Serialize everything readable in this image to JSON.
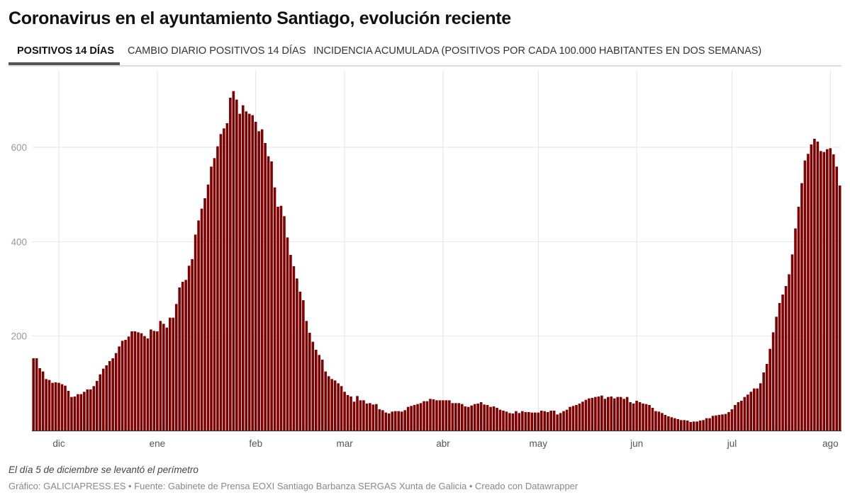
{
  "header": {
    "title": "Coronavirus en el ayuntamiento Santiago, evolución reciente",
    "tabs": [
      {
        "label": "POSITIVOS 14 DÍAS",
        "active": true
      },
      {
        "label": "CAMBIO DIARIO POSITIVOS 14 DÍAS",
        "active": false
      },
      {
        "label": "INCIDENCIA ACUMULADA (POSITIVOS POR CADA 100.000 HABITANTES EN DOS SEMANAS)",
        "active": false
      }
    ]
  },
  "footer": {
    "note": "El día 5 de diciembre se levantó el perímetro",
    "source": "Gráfico: GALICIAPRESS.ES • Fuente: Gabinete de Prensa EOXI Santiago Barbanza SERGAS Xunta de Galicia • Creado con Datawrapper"
  },
  "chart_data": {
    "type": "bar",
    "title": "",
    "xlabel": "",
    "ylabel": "",
    "bar_color": "#7f0000",
    "grid": true,
    "ylim": [
      0,
      720
    ],
    "yticks": [
      200,
      400,
      600
    ],
    "xticks": [
      {
        "date": "2020-12-01",
        "label": "dic"
      },
      {
        "date": "2021-01-01",
        "label": "ene"
      },
      {
        "date": "2021-02-01",
        "label": "feb"
      },
      {
        "date": "2021-03-01",
        "label": "mar"
      },
      {
        "date": "2021-04-01",
        "label": "abr"
      },
      {
        "date": "2021-05-01",
        "label": "may"
      },
      {
        "date": "2021-06-01",
        "label": "jun"
      },
      {
        "date": "2021-07-01",
        "label": "jul"
      },
      {
        "date": "2021-08-01",
        "label": "ago"
      }
    ],
    "x": [
      "2020-11-23",
      "2020-11-24",
      "2020-11-25",
      "2020-11-26",
      "2020-11-27",
      "2020-11-28",
      "2020-11-29",
      "2020-11-30",
      "2020-12-01",
      "2020-12-02",
      "2020-12-03",
      "2020-12-04",
      "2020-12-05",
      "2020-12-06",
      "2020-12-07",
      "2020-12-08",
      "2020-12-09",
      "2020-12-10",
      "2020-12-11",
      "2020-12-12",
      "2020-12-13",
      "2020-12-14",
      "2020-12-15",
      "2020-12-16",
      "2020-12-17",
      "2020-12-18",
      "2020-12-19",
      "2020-12-20",
      "2020-12-21",
      "2020-12-22",
      "2020-12-23",
      "2020-12-24",
      "2020-12-25",
      "2020-12-26",
      "2020-12-27",
      "2020-12-28",
      "2020-12-29",
      "2020-12-30",
      "2020-12-31",
      "2021-01-01",
      "2021-01-02",
      "2021-01-03",
      "2021-01-04",
      "2021-01-05",
      "2021-01-06",
      "2021-01-07",
      "2021-01-08",
      "2021-01-09",
      "2021-01-10",
      "2021-01-11",
      "2021-01-12",
      "2021-01-13",
      "2021-01-14",
      "2021-01-15",
      "2021-01-16",
      "2021-01-17",
      "2021-01-18",
      "2021-01-19",
      "2021-01-20",
      "2021-01-21",
      "2021-01-22",
      "2021-01-23",
      "2021-01-24",
      "2021-01-25",
      "2021-01-26",
      "2021-01-27",
      "2021-01-28",
      "2021-01-29",
      "2021-01-30",
      "2021-01-31",
      "2021-02-01",
      "2021-02-02",
      "2021-02-03",
      "2021-02-04",
      "2021-02-05",
      "2021-02-06",
      "2021-02-07",
      "2021-02-08",
      "2021-02-09",
      "2021-02-10",
      "2021-02-11",
      "2021-02-12",
      "2021-02-13",
      "2021-02-14",
      "2021-02-15",
      "2021-02-16",
      "2021-02-17",
      "2021-02-18",
      "2021-02-19",
      "2021-02-20",
      "2021-02-21",
      "2021-02-22",
      "2021-02-23",
      "2021-02-24",
      "2021-02-25",
      "2021-02-26",
      "2021-02-27",
      "2021-02-28",
      "2021-03-01",
      "2021-03-02",
      "2021-03-03",
      "2021-03-04",
      "2021-03-05",
      "2021-03-06",
      "2021-03-07",
      "2021-03-08",
      "2021-03-09",
      "2021-03-10",
      "2021-03-11",
      "2021-03-12",
      "2021-03-13",
      "2021-03-14",
      "2021-03-15",
      "2021-03-16",
      "2021-03-17",
      "2021-03-18",
      "2021-03-19",
      "2021-03-20",
      "2021-03-21",
      "2021-03-22",
      "2021-03-23",
      "2021-03-24",
      "2021-03-25",
      "2021-03-26",
      "2021-03-27",
      "2021-03-28",
      "2021-03-29",
      "2021-03-30",
      "2021-03-31",
      "2021-04-01",
      "2021-04-02",
      "2021-04-03",
      "2021-04-04",
      "2021-04-05",
      "2021-04-06",
      "2021-04-07",
      "2021-04-08",
      "2021-04-09",
      "2021-04-10",
      "2021-04-11",
      "2021-04-12",
      "2021-04-13",
      "2021-04-14",
      "2021-04-15",
      "2021-04-16",
      "2021-04-17",
      "2021-04-18",
      "2021-04-19",
      "2021-04-20",
      "2021-04-21",
      "2021-04-22",
      "2021-04-23",
      "2021-04-24",
      "2021-04-25",
      "2021-04-26",
      "2021-04-27",
      "2021-04-28",
      "2021-04-29",
      "2021-04-30",
      "2021-05-01",
      "2021-05-02",
      "2021-05-03",
      "2021-05-04",
      "2021-05-05",
      "2021-05-06",
      "2021-05-07",
      "2021-05-08",
      "2021-05-09",
      "2021-05-10",
      "2021-05-11",
      "2021-05-12",
      "2021-05-13",
      "2021-05-14",
      "2021-05-15",
      "2021-05-16",
      "2021-05-17",
      "2021-05-18",
      "2021-05-19",
      "2021-05-20",
      "2021-05-21",
      "2021-05-22",
      "2021-05-23",
      "2021-05-24",
      "2021-05-25",
      "2021-05-26",
      "2021-05-27",
      "2021-05-28",
      "2021-05-29",
      "2021-05-30",
      "2021-05-31",
      "2021-06-01",
      "2021-06-02",
      "2021-06-03",
      "2021-06-04",
      "2021-06-05",
      "2021-06-06",
      "2021-06-07",
      "2021-06-08",
      "2021-06-09",
      "2021-06-10",
      "2021-06-11",
      "2021-06-12",
      "2021-06-13",
      "2021-06-14",
      "2021-06-15",
      "2021-06-16",
      "2021-06-17",
      "2021-06-18",
      "2021-06-19",
      "2021-06-20",
      "2021-06-21",
      "2021-06-22",
      "2021-06-23",
      "2021-06-24",
      "2021-06-25",
      "2021-06-26",
      "2021-06-27",
      "2021-06-28",
      "2021-06-29",
      "2021-06-30",
      "2021-07-01",
      "2021-07-02",
      "2021-07-03",
      "2021-07-04",
      "2021-07-05",
      "2021-07-06",
      "2021-07-07",
      "2021-07-08",
      "2021-07-09",
      "2021-07-10",
      "2021-07-11",
      "2021-07-12",
      "2021-07-13",
      "2021-07-14",
      "2021-07-15",
      "2021-07-16",
      "2021-07-17",
      "2021-07-18",
      "2021-07-19",
      "2021-07-20",
      "2021-07-21",
      "2021-07-22",
      "2021-07-23",
      "2021-07-24",
      "2021-07-25",
      "2021-07-26",
      "2021-07-27",
      "2021-07-28",
      "2021-07-29",
      "2021-07-30",
      "2021-07-31",
      "2021-08-01",
      "2021-08-02",
      "2021-08-03",
      "2021-08-04"
    ],
    "values": [
      153,
      153,
      132,
      125,
      109,
      107,
      101,
      102,
      101,
      98,
      95,
      84,
      71,
      72,
      77,
      77,
      82,
      87,
      87,
      94,
      105,
      119,
      131,
      138,
      147,
      153,
      164,
      178,
      190,
      192,
      199,
      210,
      210,
      208,
      206,
      200,
      195,
      214,
      211,
      210,
      232,
      226,
      218,
      239,
      239,
      268,
      303,
      315,
      319,
      349,
      363,
      415,
      445,
      470,
      492,
      521,
      559,
      577,
      602,
      628,
      640,
      651,
      705,
      719,
      701,
      671,
      689,
      676,
      671,
      668,
      654,
      634,
      638,
      609,
      581,
      570,
      515,
      474,
      476,
      454,
      409,
      372,
      348,
      322,
      294,
      276,
      232,
      207,
      188,
      171,
      160,
      150,
      125,
      115,
      109,
      106,
      100,
      94,
      82,
      75,
      72,
      61,
      73,
      64,
      64,
      57,
      58,
      55,
      56,
      45,
      43,
      38,
      36,
      40,
      41,
      41,
      40,
      43,
      50,
      52,
      54,
      56,
      58,
      62,
      62,
      67,
      66,
      64,
      64,
      64,
      64,
      64,
      58,
      58,
      58,
      56,
      51,
      50,
      53,
      56,
      57,
      60,
      55,
      54,
      50,
      51,
      48,
      44,
      42,
      40,
      37,
      36,
      41,
      37,
      41,
      39,
      39,
      38,
      38,
      38,
      42,
      41,
      39,
      42,
      42,
      34,
      37,
      41,
      44,
      50,
      52,
      54,
      57,
      61,
      65,
      68,
      69,
      71,
      72,
      74,
      67,
      71,
      72,
      68,
      71,
      71,
      67,
      71,
      60,
      57,
      63,
      60,
      57,
      56,
      54,
      48,
      41,
      40,
      37,
      33,
      30,
      28,
      26,
      24,
      22,
      22,
      21,
      18,
      19,
      19,
      21,
      22,
      26,
      26,
      31,
      32,
      33,
      34,
      35,
      39,
      45,
      54,
      60,
      63,
      71,
      76,
      82,
      89,
      89,
      100,
      123,
      141,
      173,
      208,
      241,
      270,
      288,
      306,
      331,
      373,
      428,
      474,
      524,
      572,
      586,
      606,
      618,
      612,
      592,
      590,
      596,
      598,
      585,
      559,
      519
    ]
  }
}
